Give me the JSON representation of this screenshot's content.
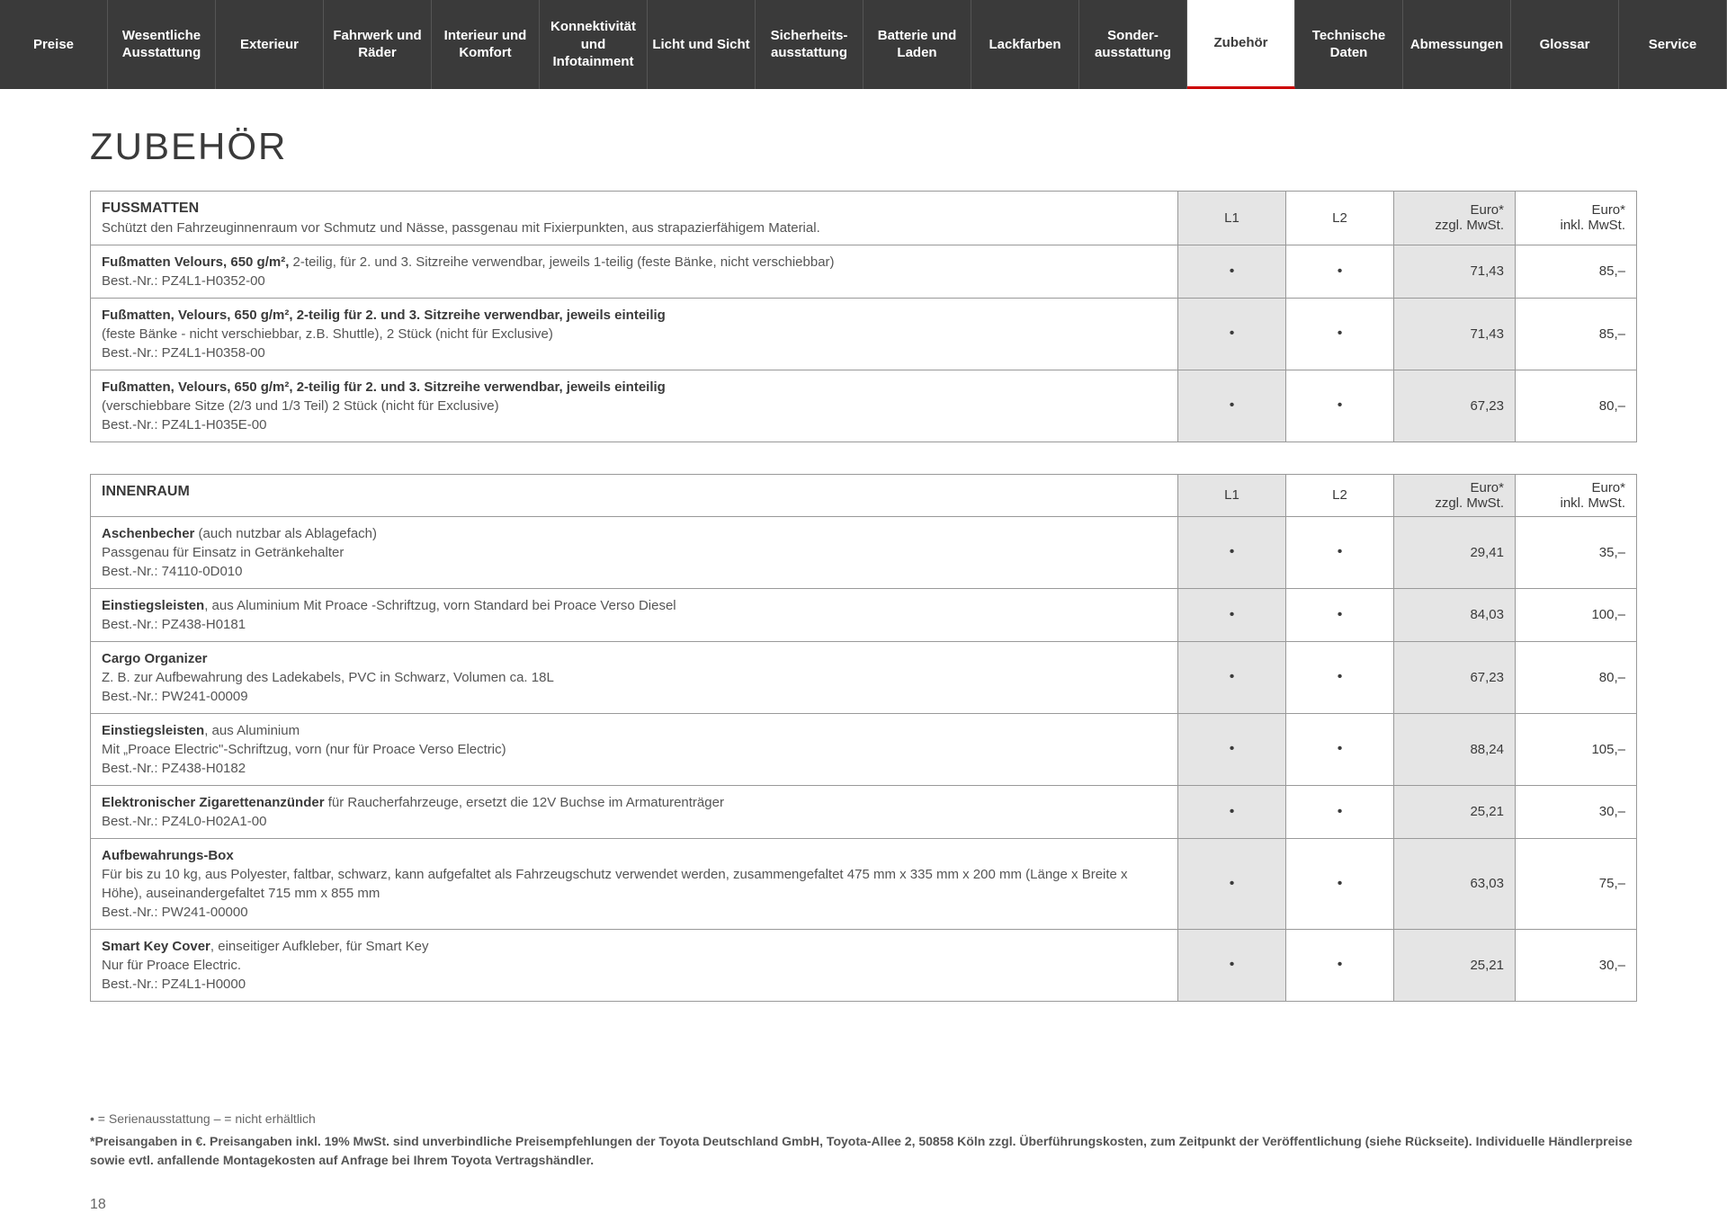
{
  "tabs": [
    {
      "label": "Preise",
      "active": false
    },
    {
      "label": "Wesentliche Ausstattung",
      "active": false
    },
    {
      "label": "Exterieur",
      "active": false
    },
    {
      "label": "Fahrwerk und Räder",
      "active": false
    },
    {
      "label": "Interieur und Komfort",
      "active": false
    },
    {
      "label": "Konnektivität und Infotainment",
      "active": false
    },
    {
      "label": "Licht und Sicht",
      "active": false
    },
    {
      "label": "Sicherheits-ausstattung",
      "active": false
    },
    {
      "label": "Batterie und Laden",
      "active": false
    },
    {
      "label": "Lackfarben",
      "active": false
    },
    {
      "label": "Sonder-ausstattung",
      "active": false
    },
    {
      "label": "Zubehör",
      "active": true
    },
    {
      "label": "Technische Daten",
      "active": false
    },
    {
      "label": "Abmessungen",
      "active": false
    },
    {
      "label": "Glossar",
      "active": false
    },
    {
      "label": "Service",
      "active": false
    }
  ],
  "page_title": "ZUBEHÖR",
  "col_headers": {
    "l1": "L1",
    "l2": "L2",
    "price1_a": "Euro*",
    "price1_b": "zzgl. MwSt.",
    "price2_a": "Euro*",
    "price2_b": "inkl. MwSt."
  },
  "sections": [
    {
      "title": "FUSSMATTEN",
      "subtitle": "Schützt den Fahrzeuginnenraum vor Schmutz und Nässe, passgenau mit Fixierpunkten, aus strapazierfähigem Material.",
      "rows": [
        {
          "title": "Fußmatten Velours, 650 g/m²,",
          "rest": " 2-teilig, für 2. und 3. Sitzreihe verwendbar, jeweils 1-teilig (feste Bänke, nicht verschiebbar)",
          "lines": [],
          "bestnr": "Best.-Nr.: PZ4L1-H0352-00",
          "l1": "•",
          "l2": "•",
          "p1": "71,43",
          "p2": "85,–"
        },
        {
          "title": "Fußmatten, Velours, 650 g/m², 2-teilig für 2. und 3. Sitzreihe verwendbar, jeweils einteilig",
          "rest": "",
          "lines": [
            "(feste Bänke - nicht verschiebbar, z.B. Shuttle), 2 Stück (nicht für Exclusive)"
          ],
          "bestnr": "Best.-Nr.: PZ4L1-H0358-00",
          "l1": "•",
          "l2": "•",
          "p1": "71,43",
          "p2": "85,–"
        },
        {
          "title": "Fußmatten, Velours, 650 g/m², 2-teilig für 2. und 3. Sitzreihe verwendbar, jeweils einteilig",
          "rest": "",
          "lines": [
            "(verschiebbare Sitze (2/3 und 1/3 Teil) 2 Stück (nicht für Exclusive)"
          ],
          "bestnr": "Best.-Nr.: PZ4L1-H035E-00",
          "l1": "•",
          "l2": "•",
          "p1": "67,23",
          "p2": "80,–"
        }
      ]
    },
    {
      "title": "INNENRAUM",
      "subtitle": "",
      "rows": [
        {
          "title": "Aschenbecher",
          "rest": " (auch nutzbar als Ablagefach)",
          "lines": [
            "Passgenau für Einsatz in Getränkehalter"
          ],
          "bestnr": "Best.-Nr.: 74110-0D010",
          "l1": "•",
          "l2": "•",
          "p1": "29,41",
          "p2": "35,–"
        },
        {
          "title": "Einstiegsleisten",
          "rest": ", aus Aluminium Mit Proace -Schriftzug, vorn Standard bei Proace Verso Diesel",
          "lines": [],
          "bestnr": "Best.-Nr.: PZ438-H0181",
          "l1": "•",
          "l2": "•",
          "p1": "84,03",
          "p2": "100,–"
        },
        {
          "title": "Cargo Organizer",
          "rest": "",
          "lines": [
            "Z. B. zur Aufbewahrung des Ladekabels, PVC in Schwarz, Volumen ca. 18L"
          ],
          "bestnr": "Best.-Nr.: PW241-00009",
          "l1": "•",
          "l2": "•",
          "p1": "67,23",
          "p2": "80,–"
        },
        {
          "title": "Einstiegsleisten",
          "rest": ", aus Aluminium",
          "lines": [
            "Mit „Proace Electric\"-Schriftzug, vorn (nur für Proace Verso Electric)"
          ],
          "bestnr": "Best.-Nr.: PZ438-H0182",
          "l1": "•",
          "l2": "•",
          "p1": "88,24",
          "p2": "105,–"
        },
        {
          "title": "Elektronischer Zigarettenanzünder",
          "rest": " für Raucherfahrzeuge, ersetzt die 12V Buchse im Armaturenträger",
          "lines": [],
          "bestnr": "Best.-Nr.: PZ4L0-H02A1-00",
          "l1": "•",
          "l2": "•",
          "p1": "25,21",
          "p2": "30,–"
        },
        {
          "title": "Aufbewahrungs-Box",
          "rest": "",
          "lines": [
            "Für bis zu 10 kg, aus Polyester, faltbar, schwarz, kann aufgefaltet als Fahrzeugschutz verwendet werden, zusammengefaltet 475 mm x 335 mm x 200 mm (Länge x Breite x Höhe), auseinandergefaltet 715 mm x 855 mm"
          ],
          "bestnr": "Best.-Nr.: PW241-00000",
          "l1": "•",
          "l2": "•",
          "p1": "63,03",
          "p2": "75,–"
        },
        {
          "title": "Smart Key Cover",
          "rest": ", einseitiger Aufkleber, für Smart Key",
          "lines": [
            "Nur für Proace Electric."
          ],
          "bestnr": "Best.-Nr.: PZ4L1-H0000",
          "l1": "•",
          "l2": "•",
          "p1": "25,21",
          "p2": "30,–"
        }
      ]
    }
  ],
  "legend": {
    "line1": "• = Serienausstattung    – = nicht erhältlich",
    "line2": "*Preisangaben in €. Preisangaben inkl. 19% MwSt. sind unverbindliche Preisempfehlungen der Toyota Deutschland GmbH, Toyota-Allee 2, 50858 Köln zzgl. Überführungskosten, zum Zeitpunkt der Veröffentlichung (siehe Rückseite). Individuelle Händlerpreise sowie evtl. anfallende Montagekosten auf Anfrage bei Ihrem Toyota Vertragshändler."
  },
  "page_number": "18"
}
